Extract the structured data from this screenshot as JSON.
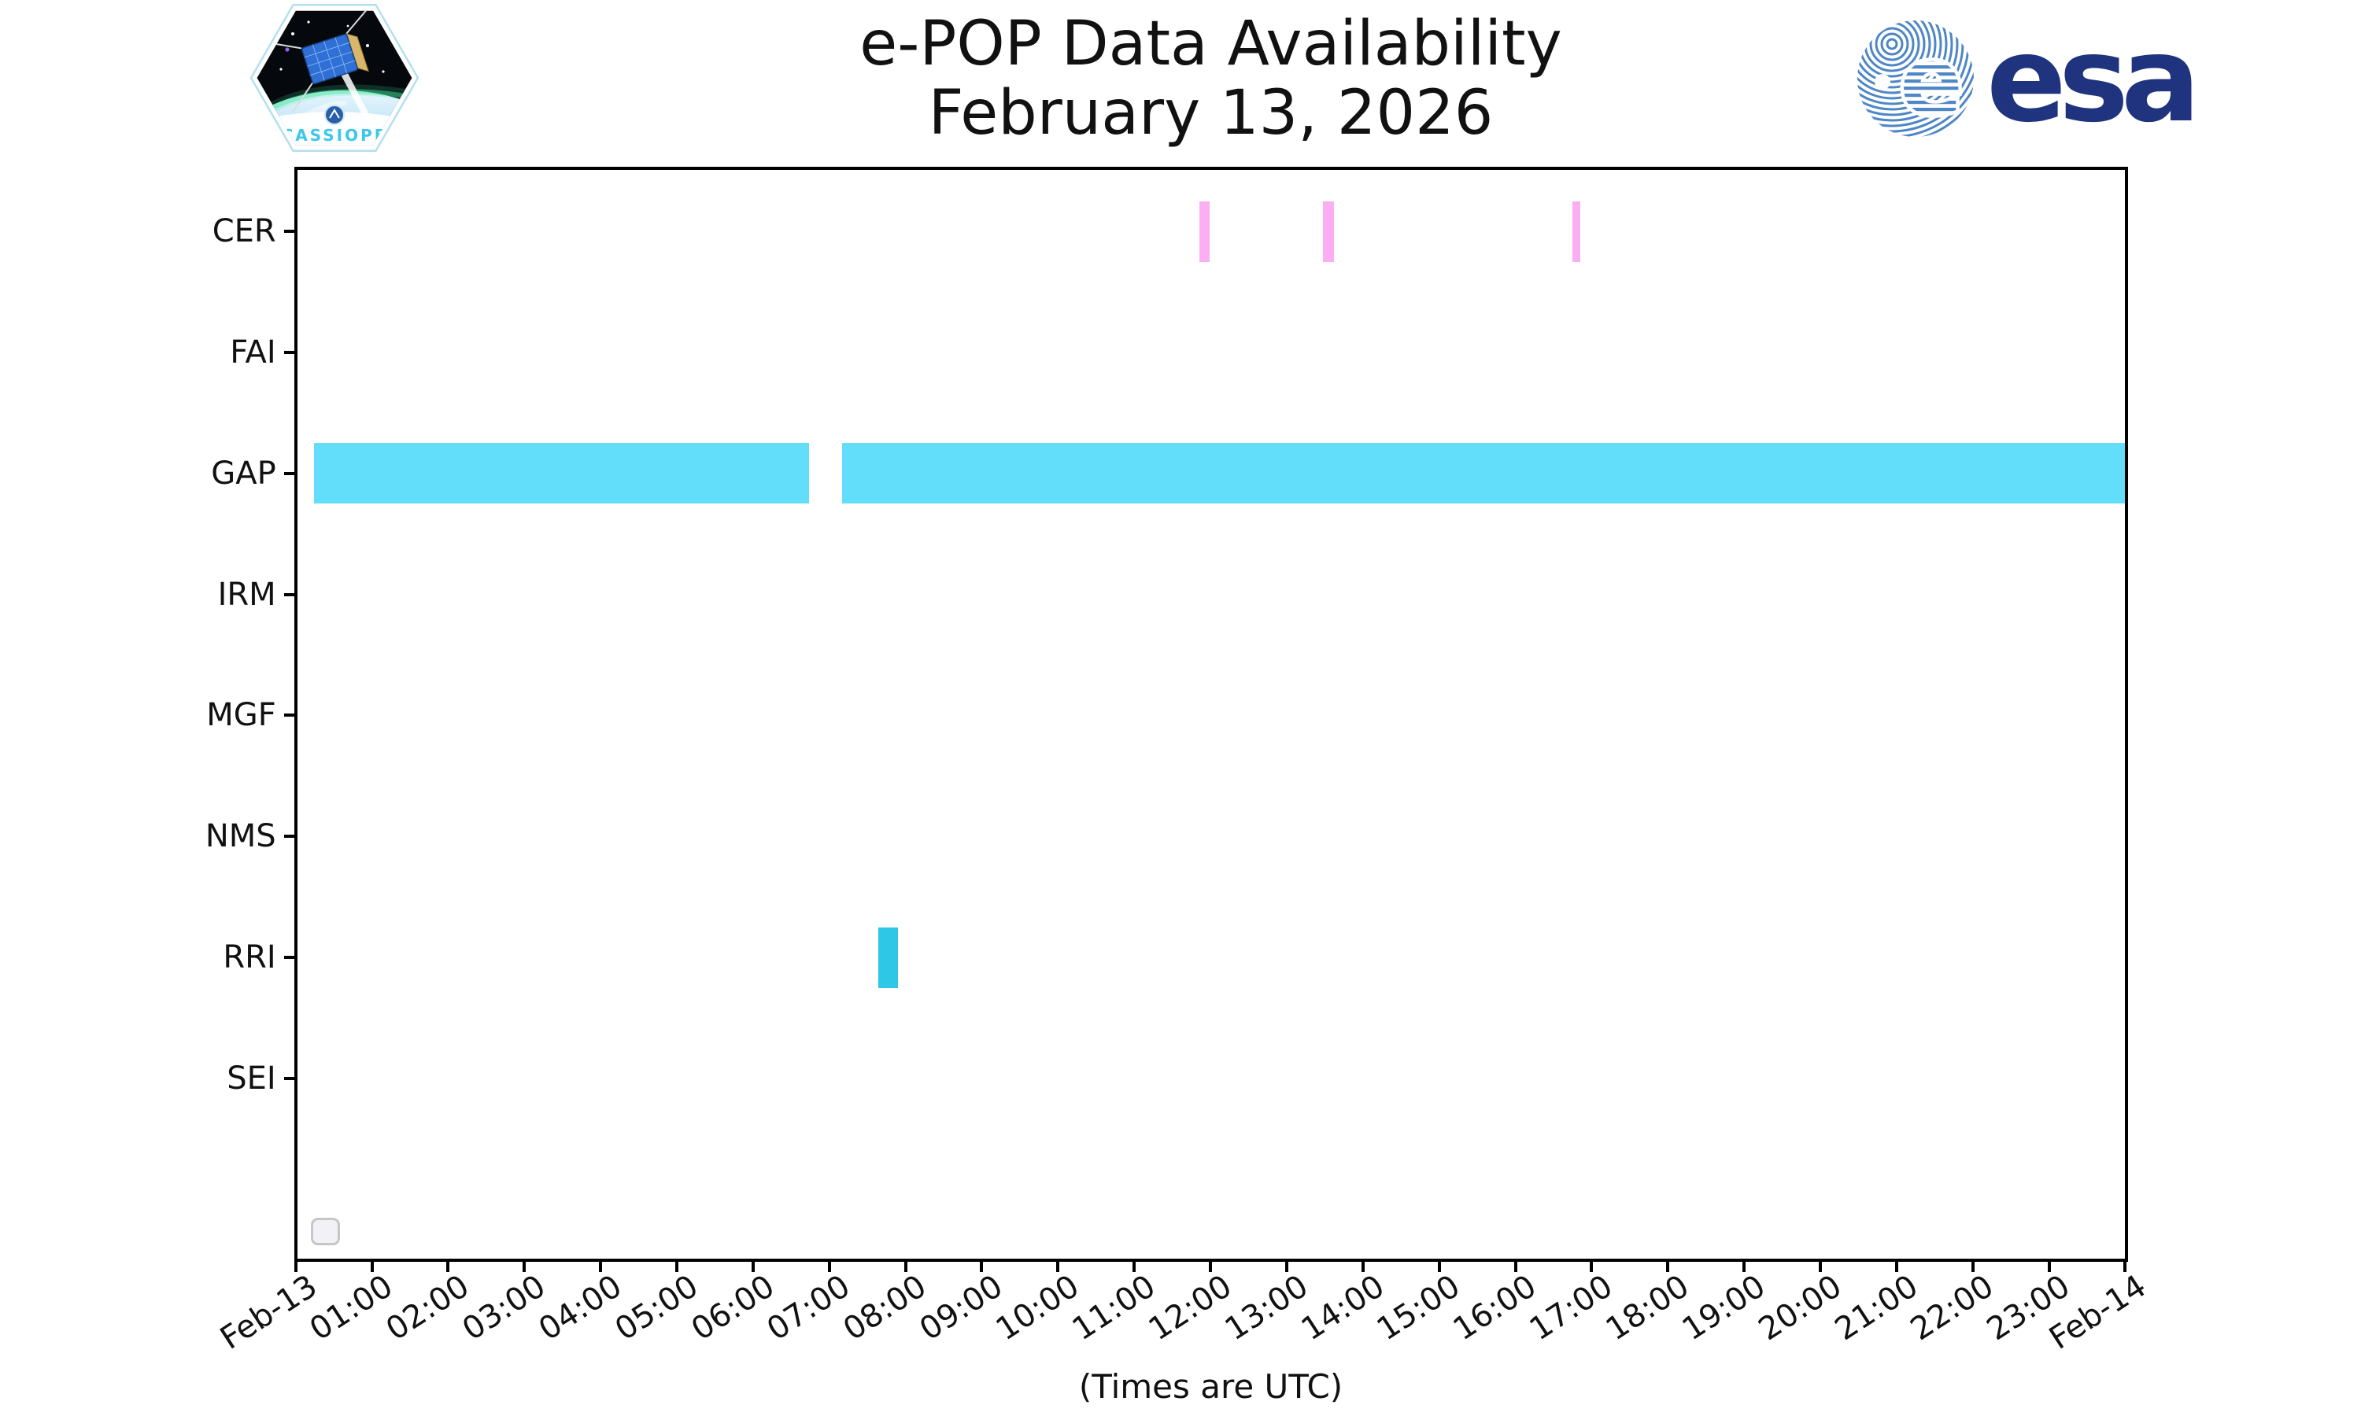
{
  "header": {
    "title_line1": "e-POP Data Availability",
    "title_line2": "February 13, 2026"
  },
  "logos": {
    "cassiope_label": "CASSIOPE",
    "esa_wordmark": "esa"
  },
  "chart_data": {
    "type": "broken_barh",
    "title": "e-POP Data Availability",
    "subtitle": "February 13, 2026",
    "xlabel": "(Times are UTC)",
    "xlim_hours": [
      0,
      24
    ],
    "grid": false,
    "legend_position": "lower-left-empty-box",
    "x_tick_labels": [
      "Feb-13",
      "01:00",
      "02:00",
      "03:00",
      "04:00",
      "05:00",
      "06:00",
      "07:00",
      "08:00",
      "09:00",
      "10:00",
      "11:00",
      "12:00",
      "13:00",
      "14:00",
      "15:00",
      "16:00",
      "17:00",
      "18:00",
      "19:00",
      "20:00",
      "21:00",
      "22:00",
      "23:00",
      "Feb-14"
    ],
    "instruments": [
      "CER",
      "FAI",
      "GAP",
      "IRM",
      "MGF",
      "NMS",
      "RRI",
      "SEI"
    ],
    "series": [
      {
        "instrument": "CER",
        "color": "#fbaef1",
        "intervals_hours": [
          [
            11.86,
            11.99
          ],
          [
            13.48,
            13.62
          ],
          [
            16.75,
            16.85
          ]
        ],
        "intervals_hhmm": [
          [
            "11:52",
            "11:59"
          ],
          [
            "13:29",
            "13:37"
          ],
          [
            "16:45",
            "16:51"
          ]
        ]
      },
      {
        "instrument": "GAP",
        "color": "#62defb",
        "intervals_hours": [
          [
            0.24,
            6.73
          ],
          [
            7.17,
            24.0
          ]
        ],
        "intervals_hhmm": [
          [
            "00:15",
            "06:44"
          ],
          [
            "07:10",
            "24:00"
          ]
        ]
      },
      {
        "instrument": "RRI",
        "color": "#2ec8e6",
        "intervals_hours": [
          [
            7.64,
            7.9
          ]
        ],
        "intervals_hhmm": [
          [
            "07:38",
            "07:54"
          ]
        ]
      }
    ],
    "colors": {
      "axis": "#000000",
      "background": "#ffffff",
      "cer_bar": "#fbaef1",
      "gap_bar": "#62defb",
      "rri_bar": "#2ec8e6"
    }
  }
}
